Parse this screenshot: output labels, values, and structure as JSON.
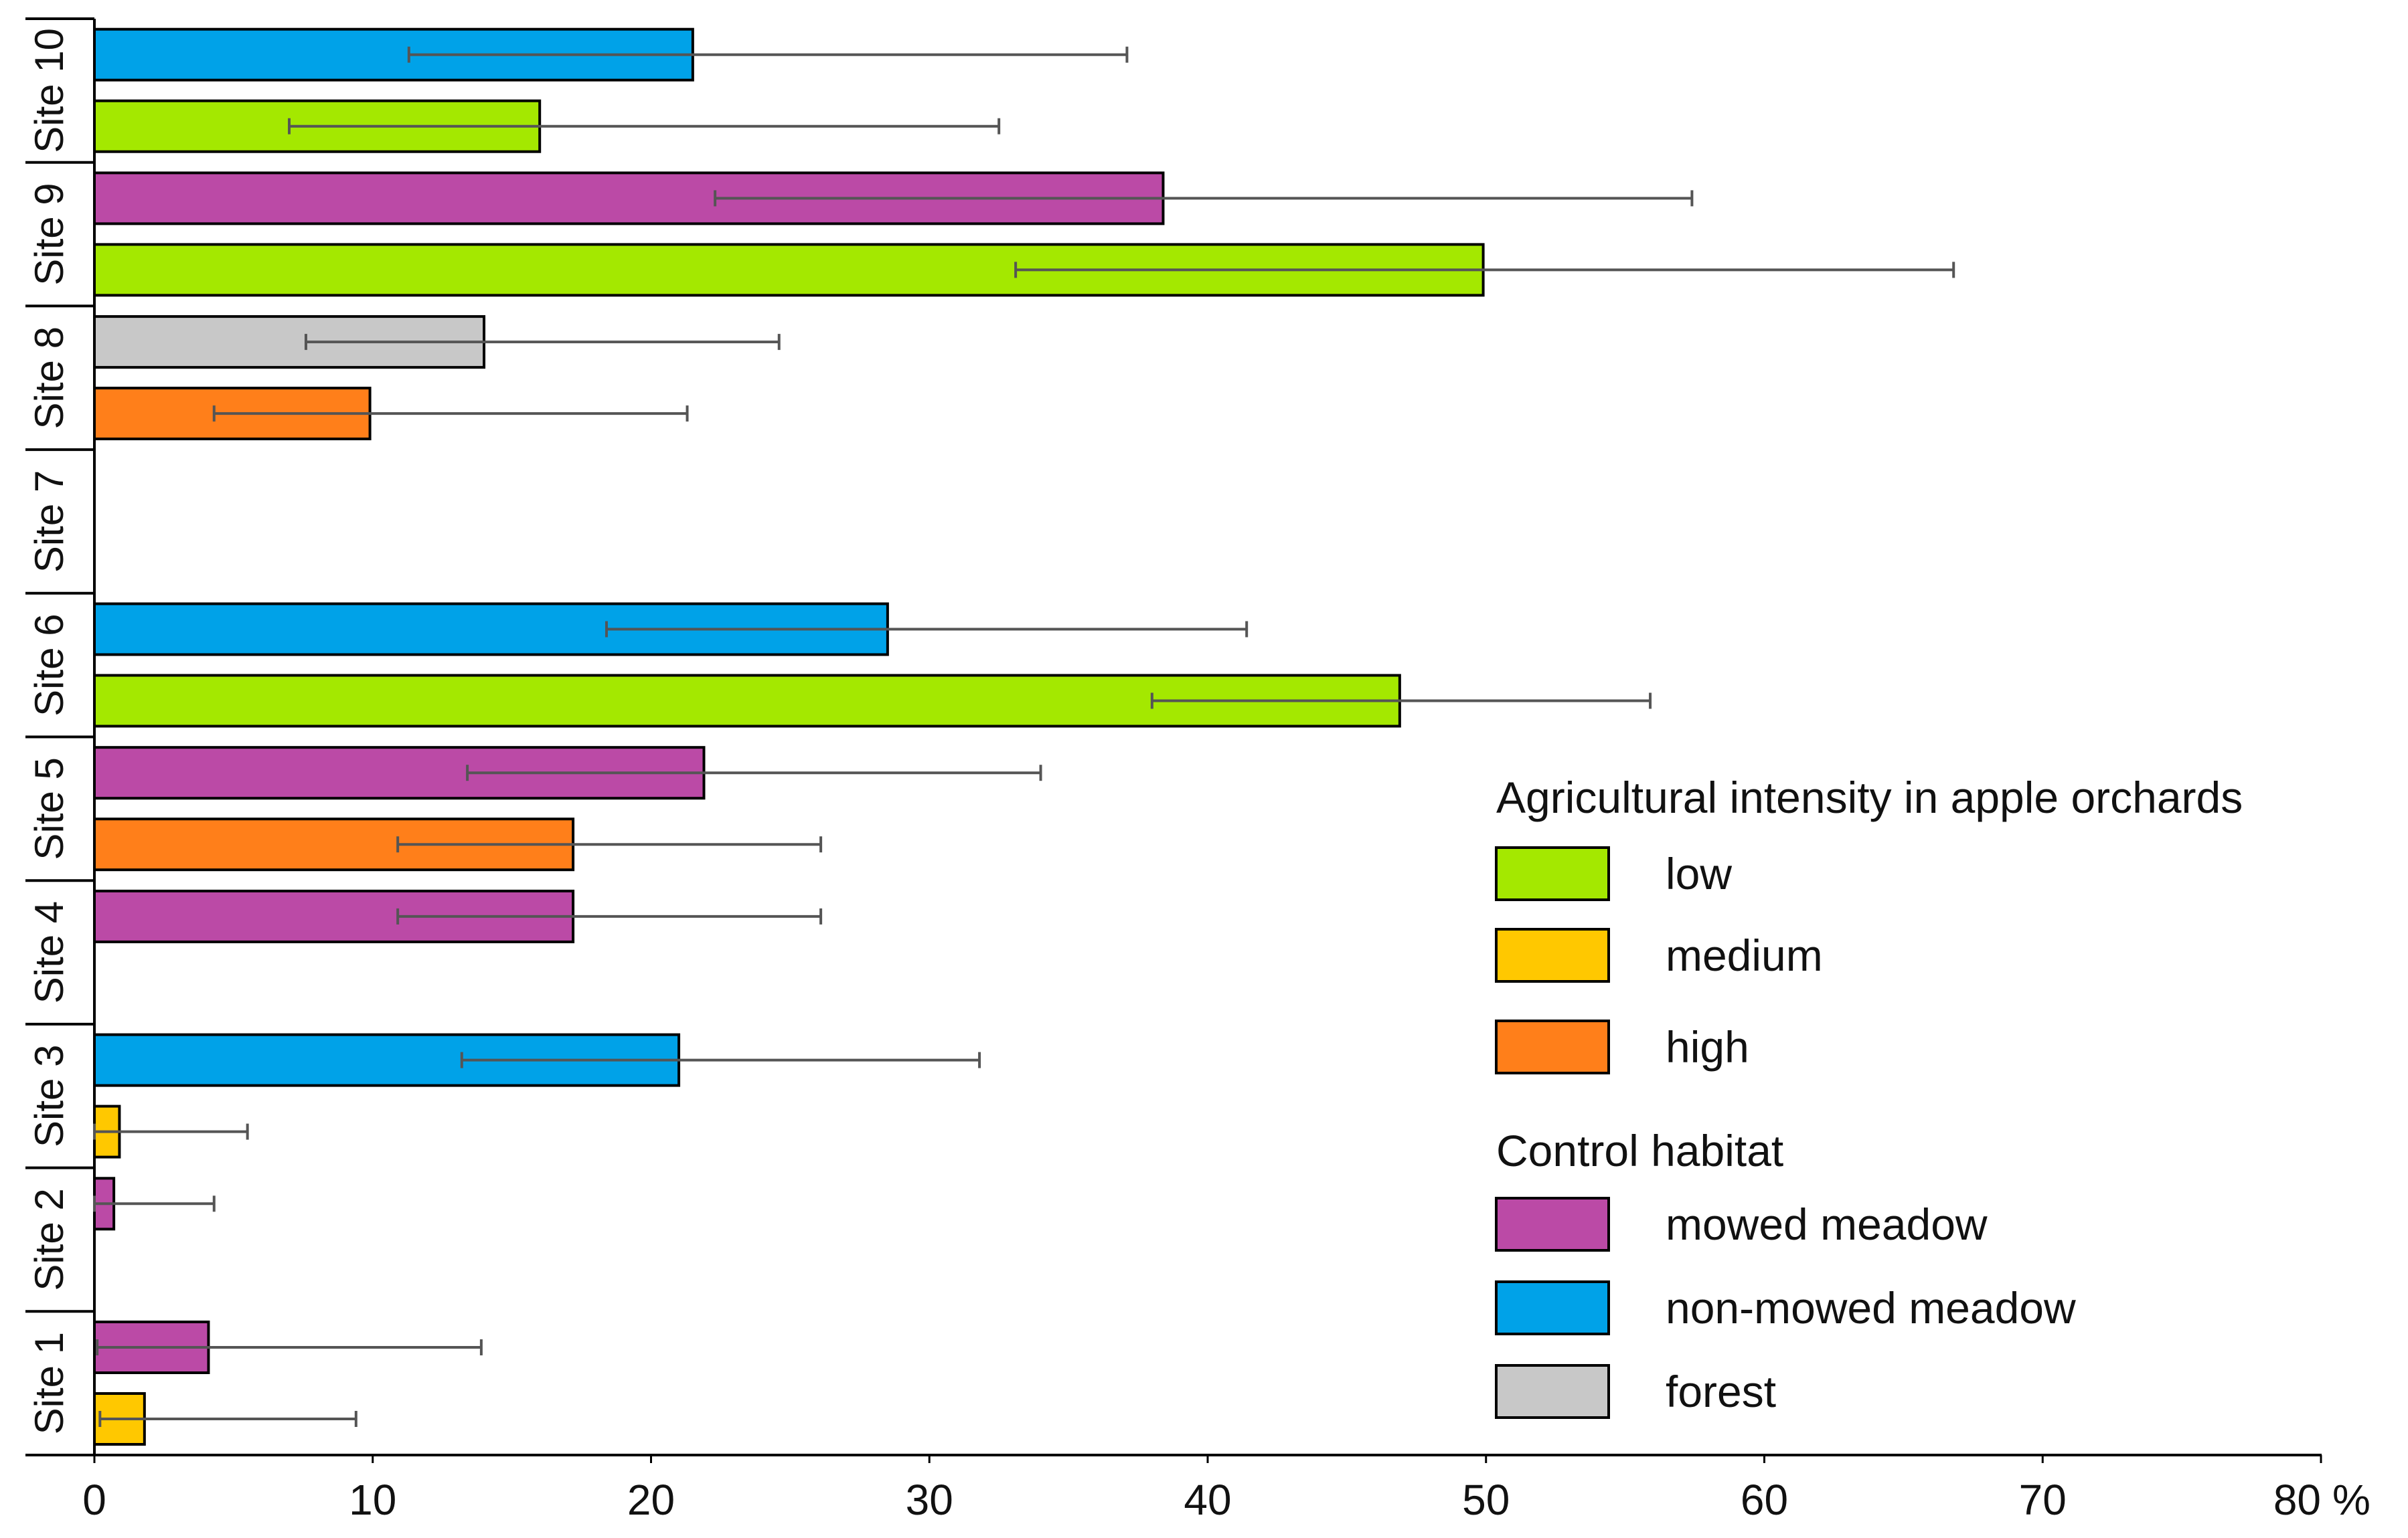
{
  "chart_data": {
    "type": "bar",
    "orientation": "horizontal",
    "title": "",
    "xlabel": "",
    "ylabel": "",
    "x_unit": "%",
    "xlim": [
      0,
      80
    ],
    "x_ticks": [
      0,
      10,
      20,
      30,
      40,
      50,
      60,
      70,
      80
    ],
    "x_tick_labels": [
      "0",
      "10",
      "20",
      "30",
      "40",
      "50",
      "60",
      "70",
      "80"
    ],
    "grid": false,
    "categories": [
      "Site 1",
      "Site 2",
      "Site 3",
      "Site 4",
      "Site 5",
      "Site 6",
      "Site 7",
      "Site 8",
      "Site 9",
      "Site 10"
    ],
    "legend": {
      "location": "bottom-right",
      "groups": [
        {
          "title": "Agricultural intensity in apple orchards",
          "items": [
            {
              "key": "low",
              "label": "low",
              "color": "#a4e800"
            },
            {
              "key": "medium",
              "label": "medium",
              "color": "#ffc800"
            },
            {
              "key": "high",
              "label": "high",
              "color": "#ff7f1a"
            }
          ]
        },
        {
          "title": "Control habitat",
          "items": [
            {
              "key": "mowed",
              "label": "mowed meadow",
              "color": "#bb4aa6"
            },
            {
              "key": "nonmowed",
              "label": "non-mowed meadow",
              "color": "#00a2e8"
            },
            {
              "key": "forest",
              "label": "forest",
              "color": "#c8c8c8"
            }
          ]
        }
      ]
    },
    "bars": [
      {
        "site": "Site 1",
        "slot": "lower",
        "habitat": "medium",
        "value": 1.8,
        "err_low": 0.2,
        "err_high": 9.4
      },
      {
        "site": "Site 1",
        "slot": "upper",
        "habitat": "mowed",
        "value": 4.1,
        "err_low": 0.1,
        "err_high": 13.9
      },
      {
        "site": "Site 2",
        "slot": "upper",
        "habitat": "mowed",
        "value": 0.7,
        "err_low": 0.0,
        "err_high": 4.3
      },
      {
        "site": "Site 3",
        "slot": "lower",
        "habitat": "medium",
        "value": 0.9,
        "err_low": 0.0,
        "err_high": 5.5
      },
      {
        "site": "Site 3",
        "slot": "upper",
        "habitat": "nonmowed",
        "value": 21.0,
        "err_low": 13.2,
        "err_high": 31.8
      },
      {
        "site": "Site 4",
        "slot": "upper",
        "habitat": "mowed",
        "value": 17.2,
        "err_low": 10.9,
        "err_high": 26.1
      },
      {
        "site": "Site 5",
        "slot": "lower",
        "habitat": "high",
        "value": 17.2,
        "err_low": 10.9,
        "err_high": 26.1
      },
      {
        "site": "Site 5",
        "slot": "upper",
        "habitat": "mowed",
        "value": 21.9,
        "err_low": 13.4,
        "err_high": 34.0
      },
      {
        "site": "Site 6",
        "slot": "lower",
        "habitat": "low",
        "value": 46.9,
        "err_low": 38.0,
        "err_high": 55.9
      },
      {
        "site": "Site 6",
        "slot": "upper",
        "habitat": "nonmowed",
        "value": 28.5,
        "err_low": 18.4,
        "err_high": 41.4
      },
      {
        "site": "Site 8",
        "slot": "lower",
        "habitat": "high",
        "value": 9.9,
        "err_low": 4.3,
        "err_high": 21.3
      },
      {
        "site": "Site 8",
        "slot": "upper",
        "habitat": "forest",
        "value": 14.0,
        "err_low": 7.6,
        "err_high": 24.6
      },
      {
        "site": "Site 9",
        "slot": "lower",
        "habitat": "low",
        "value": 49.9,
        "err_low": 33.1,
        "err_high": 66.8
      },
      {
        "site": "Site 9",
        "slot": "upper",
        "habitat": "mowed",
        "value": 38.4,
        "err_low": 22.3,
        "err_high": 57.4
      },
      {
        "site": "Site 10",
        "slot": "lower",
        "habitat": "low",
        "value": 16.0,
        "err_low": 7.0,
        "err_high": 32.5
      },
      {
        "site": "Site 10",
        "slot": "upper",
        "habitat": "nonmowed",
        "value": 21.5,
        "err_low": 11.3,
        "err_high": 37.1
      }
    ]
  }
}
